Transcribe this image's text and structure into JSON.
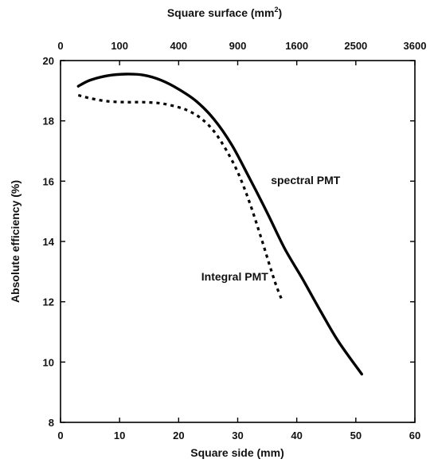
{
  "chart_data": {
    "type": "line",
    "xlabel": "Square side (mm)",
    "x2label_base": "Square surface (mm",
    "x2label_sup": "2",
    "x2label_close": ")",
    "ylabel": "Absolute efficiency (%)",
    "xlim": [
      0,
      60
    ],
    "ylim": [
      8,
      20
    ],
    "x_ticks": [
      0,
      10,
      20,
      30,
      40,
      50,
      60
    ],
    "y_ticks": [
      8,
      10,
      12,
      14,
      16,
      18,
      20
    ],
    "x2_ticks": [
      {
        "side": 0,
        "label": "0"
      },
      {
        "side": 10,
        "label": "100"
      },
      {
        "side": 20,
        "label": "400"
      },
      {
        "side": 30,
        "label": "900"
      },
      {
        "side": 40,
        "label": "1600"
      },
      {
        "side": 50,
        "label": "2500"
      },
      {
        "side": 60,
        "label": "3600"
      }
    ],
    "series": [
      {
        "name": "spectral PMT",
        "style": "solid",
        "color": "#000000",
        "x": [
          3,
          5,
          8,
          11,
          14,
          17,
          20,
          23,
          26,
          29,
          32,
          35,
          38,
          41,
          44,
          47,
          51
        ],
        "y": [
          19.15,
          19.35,
          19.5,
          19.55,
          19.52,
          19.35,
          19.05,
          18.65,
          18.05,
          17.2,
          16.1,
          14.95,
          13.75,
          12.75,
          11.7,
          10.7,
          9.6
        ]
      },
      {
        "name": "Integral PMT",
        "style": "dotted",
        "color": "#000000",
        "x": [
          3,
          5,
          8,
          11,
          14,
          17,
          20,
          22,
          24,
          26,
          28,
          30,
          32,
          34,
          35.5,
          36.5,
          37.5
        ],
        "y": [
          18.85,
          18.75,
          18.65,
          18.62,
          18.62,
          18.58,
          18.45,
          18.3,
          18.05,
          17.65,
          17.05,
          16.3,
          15.3,
          14.1,
          13.15,
          12.55,
          12.05
        ]
      }
    ],
    "annotations": [
      {
        "text": "spectral PMT",
        "x": 41.5,
        "y": 15.9
      },
      {
        "text": "Integral PMT",
        "x": 29.5,
        "y": 12.7
      }
    ]
  }
}
